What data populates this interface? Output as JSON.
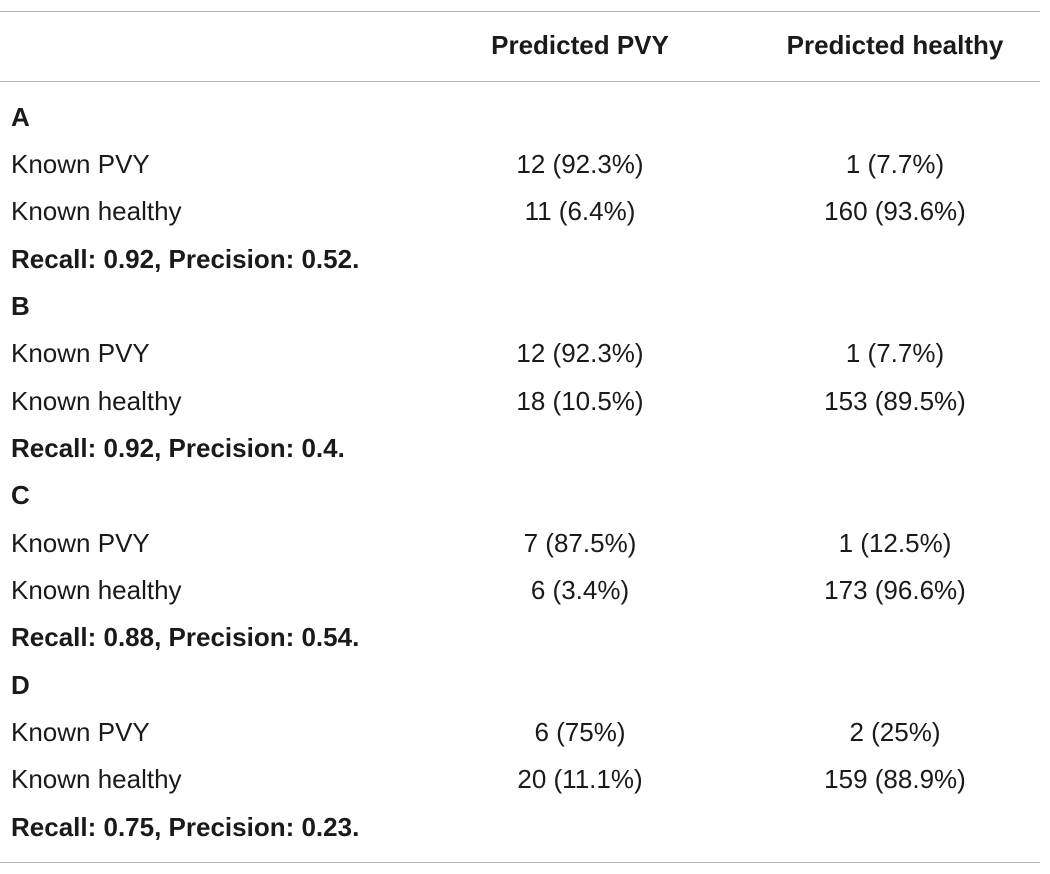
{
  "header": {
    "row_label": "",
    "col1": "Predicted PVY",
    "col2": "Predicted healthy"
  },
  "sections": [
    {
      "label": "A",
      "rows": [
        {
          "label": "Known PVY",
          "col1": "12 (92.3%)",
          "col2": "1 (7.7%)"
        },
        {
          "label": "Known healthy",
          "col1": "11 (6.4%)",
          "col2": "160 (93.6%)"
        }
      ],
      "summary": "Recall: 0.92, Precision: 0.52."
    },
    {
      "label": "B",
      "rows": [
        {
          "label": "Known PVY",
          "col1": "12 (92.3%)",
          "col2": "1 (7.7%)"
        },
        {
          "label": "Known healthy",
          "col1": "18 (10.5%)",
          "col2": "153 (89.5%)"
        }
      ],
      "summary": "Recall: 0.92, Precision: 0.4."
    },
    {
      "label": "C",
      "rows": [
        {
          "label": "Known PVY",
          "col1": "7 (87.5%)",
          "col2": "1 (12.5%)"
        },
        {
          "label": "Known healthy",
          "col1": "6 (3.4%)",
          "col2": "173 (96.6%)"
        }
      ],
      "summary": "Recall: 0.88, Precision: 0.54."
    },
    {
      "label": "D",
      "rows": [
        {
          "label": "Known PVY",
          "col1": "6 (75%)",
          "col2": "2 (25%)"
        },
        {
          "label": "Known healthy",
          "col1": "20 (11.1%)",
          "col2": "159 (88.9%)"
        }
      ],
      "summary": "Recall: 0.75, Precision: 0.23."
    }
  ]
}
